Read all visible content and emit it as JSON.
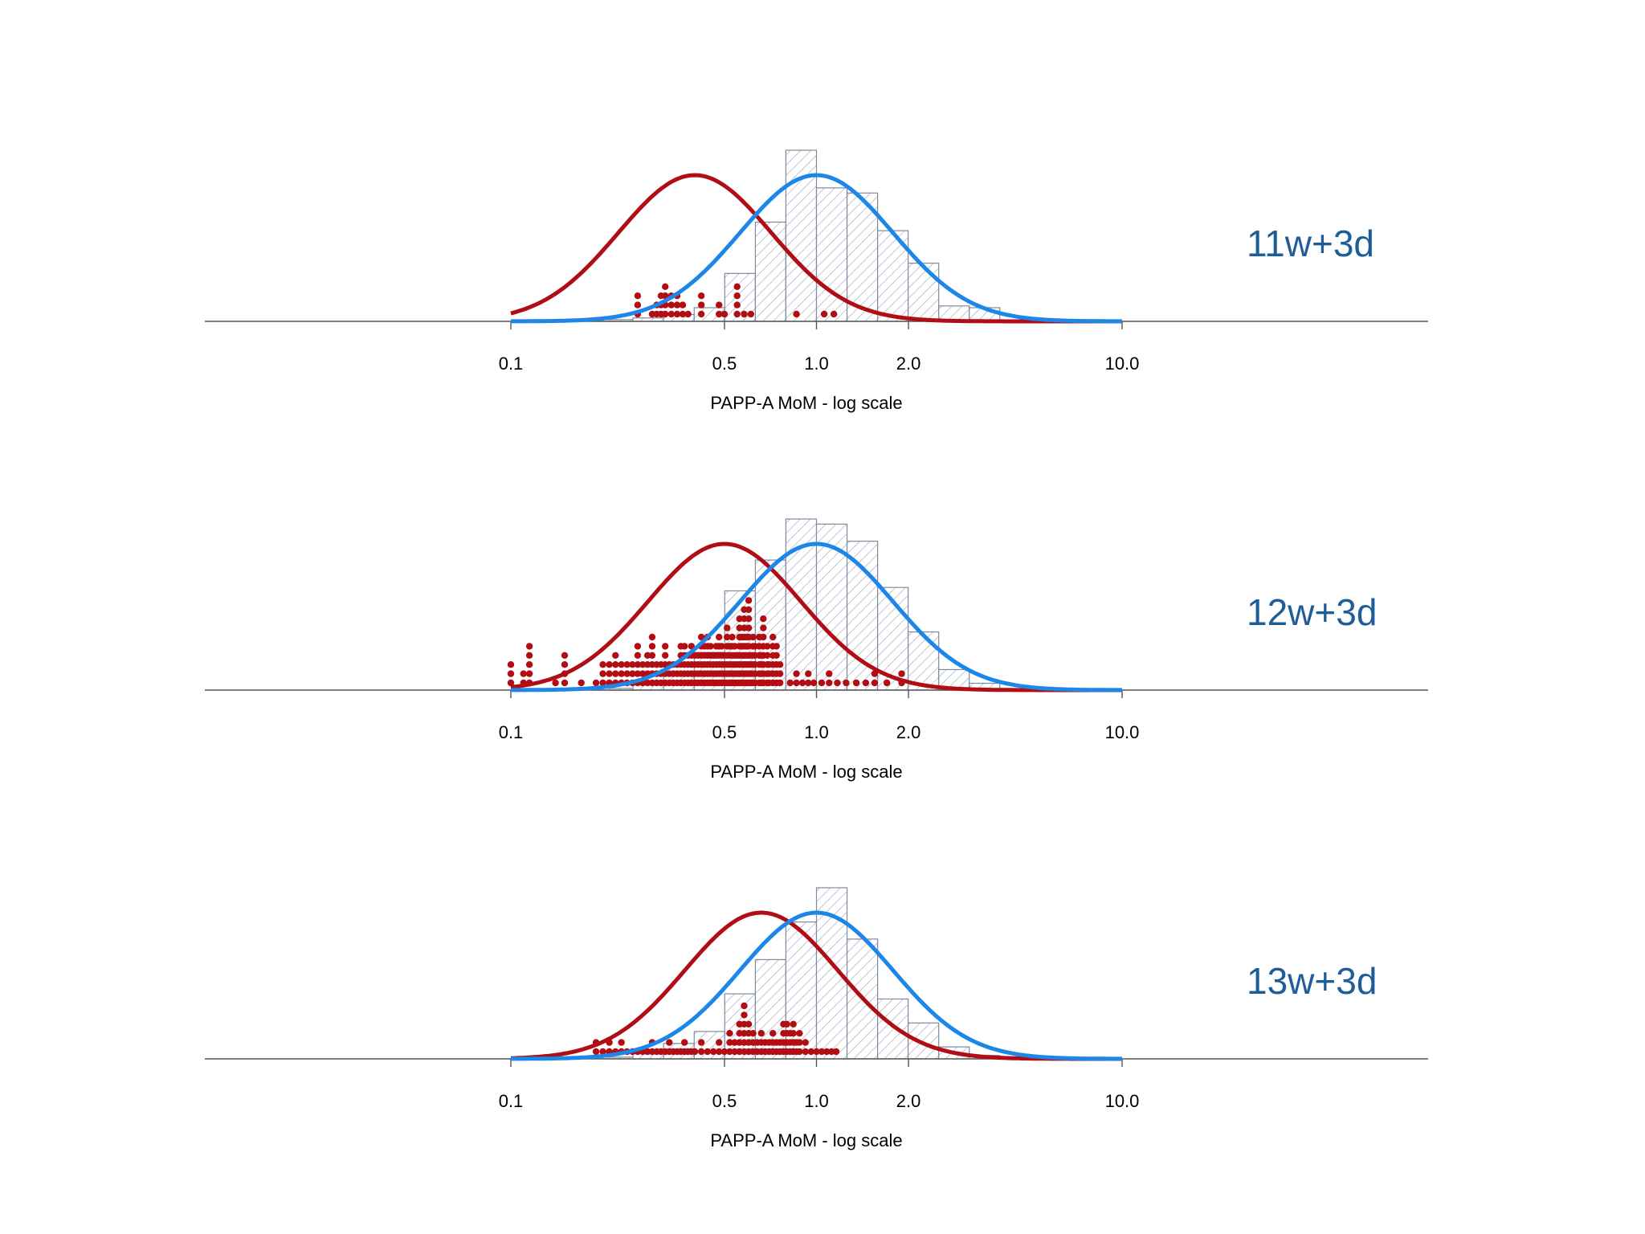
{
  "figure": {
    "colors": {
      "affected_curve": "#b00d15",
      "unaffected_curve": "#1c87e8",
      "points": "#b30d14",
      "histogram_edge": "#7f8aa0",
      "histogram_hatch": "#a6aebc",
      "baseline": "#555555",
      "panel_label": "#1f5d99"
    }
  },
  "chart_data": [
    {
      "type": "histogram-with-curves",
      "label": "11w+3d",
      "xlabel": "PAPP-A MoM - log scale",
      "x_scale": "log",
      "xlim": [
        0.1,
        10.0
      ],
      "x_ticks": [
        "0.1",
        "0.5",
        "1.0",
        "2.0",
        "10.0"
      ],
      "histogram": [
        {
          "x0": 0.1,
          "x1": 0.126,
          "freq": 0.0
        },
        {
          "x0": 0.126,
          "x1": 0.159,
          "freq": 0.0
        },
        {
          "x0": 0.159,
          "x1": 0.2,
          "freq": 0.01
        },
        {
          "x0": 0.2,
          "x1": 0.251,
          "freq": 0.01
        },
        {
          "x0": 0.251,
          "x1": 0.316,
          "freq": 0.02
        },
        {
          "x0": 0.316,
          "x1": 0.398,
          "freq": 0.04
        },
        {
          "x0": 0.398,
          "x1": 0.501,
          "freq": 0.08
        },
        {
          "x0": 0.501,
          "x1": 0.631,
          "freq": 0.28
        },
        {
          "x0": 0.631,
          "x1": 0.794,
          "freq": 0.58
        },
        {
          "x0": 0.794,
          "x1": 1.0,
          "freq": 1.0
        },
        {
          "x0": 1.0,
          "x1": 1.259,
          "freq": 0.78
        },
        {
          "x0": 1.259,
          "x1": 1.585,
          "freq": 0.75
        },
        {
          "x0": 1.585,
          "x1": 1.995,
          "freq": 0.53
        },
        {
          "x0": 1.995,
          "x1": 2.512,
          "freq": 0.34
        },
        {
          "x0": 2.512,
          "x1": 3.162,
          "freq": 0.09
        },
        {
          "x0": 3.162,
          "x1": 3.981,
          "freq": 0.08
        }
      ],
      "curves": [
        {
          "group": "affected",
          "median_mom": 0.4,
          "log10_sd": 0.25
        },
        {
          "group": "unaffected",
          "median_mom": 1.0,
          "log10_sd": 0.25
        }
      ],
      "points_max_count": 4,
      "points": [
        {
          "x": 0.26,
          "count": 3
        },
        {
          "x": 0.29,
          "count": 1
        },
        {
          "x": 0.3,
          "count": 2
        },
        {
          "x": 0.31,
          "count": 3
        },
        {
          "x": 0.32,
          "count": 4
        },
        {
          "x": 0.335,
          "count": 3
        },
        {
          "x": 0.35,
          "count": 3
        },
        {
          "x": 0.365,
          "count": 2
        },
        {
          "x": 0.38,
          "count": 1
        },
        {
          "x": 0.42,
          "count": 3
        },
        {
          "x": 0.48,
          "count": 2
        },
        {
          "x": 0.5,
          "count": 1
        },
        {
          "x": 0.55,
          "count": 4
        },
        {
          "x": 0.58,
          "count": 1
        },
        {
          "x": 0.61,
          "count": 1
        },
        {
          "x": 0.86,
          "count": 1
        },
        {
          "x": 1.06,
          "count": 1
        },
        {
          "x": 1.14,
          "count": 1
        }
      ]
    },
    {
      "type": "histogram-with-curves",
      "label": "12w+3d",
      "xlabel": "PAPP-A MoM - log scale",
      "x_scale": "log",
      "xlim": [
        0.1,
        10.0
      ],
      "x_ticks": [
        "0.1",
        "0.5",
        "1.0",
        "2.0",
        "10.0"
      ],
      "histogram": [
        {
          "x0": 0.1,
          "x1": 0.126,
          "freq": 0.0
        },
        {
          "x0": 0.126,
          "x1": 0.159,
          "freq": 0.0
        },
        {
          "x0": 0.159,
          "x1": 0.2,
          "freq": 0.0
        },
        {
          "x0": 0.2,
          "x1": 0.251,
          "freq": 0.01
        },
        {
          "x0": 0.251,
          "x1": 0.316,
          "freq": 0.03
        },
        {
          "x0": 0.316,
          "x1": 0.398,
          "freq": 0.1
        },
        {
          "x0": 0.398,
          "x1": 0.501,
          "freq": 0.22
        },
        {
          "x0": 0.501,
          "x1": 0.631,
          "freq": 0.58
        },
        {
          "x0": 0.631,
          "x1": 0.794,
          "freq": 0.76
        },
        {
          "x0": 0.794,
          "x1": 1.0,
          "freq": 1.0
        },
        {
          "x0": 1.0,
          "x1": 1.259,
          "freq": 0.97
        },
        {
          "x0": 1.259,
          "x1": 1.585,
          "freq": 0.87
        },
        {
          "x0": 1.585,
          "x1": 1.995,
          "freq": 0.6
        },
        {
          "x0": 1.995,
          "x1": 2.512,
          "freq": 0.34
        },
        {
          "x0": 2.512,
          "x1": 3.162,
          "freq": 0.12
        },
        {
          "x0": 3.162,
          "x1": 3.981,
          "freq": 0.04
        }
      ],
      "curves": [
        {
          "group": "affected",
          "median_mom": 0.5,
          "log10_sd": 0.25
        },
        {
          "group": "unaffected",
          "median_mom": 1.0,
          "log10_sd": 0.25
        }
      ],
      "points_max_count": 10,
      "points": [
        {
          "x": 0.1,
          "count": 3
        },
        {
          "x": 0.11,
          "count": 2
        },
        {
          "x": 0.115,
          "count": 5
        },
        {
          "x": 0.14,
          "count": 1
        },
        {
          "x": 0.15,
          "count": 4
        },
        {
          "x": 0.17,
          "count": 1
        },
        {
          "x": 0.19,
          "count": 1
        },
        {
          "x": 0.2,
          "count": 3
        },
        {
          "x": 0.21,
          "count": 3
        },
        {
          "x": 0.22,
          "count": 4
        },
        {
          "x": 0.23,
          "count": 3
        },
        {
          "x": 0.24,
          "count": 3
        },
        {
          "x": 0.25,
          "count": 3
        },
        {
          "x": 0.26,
          "count": 5
        },
        {
          "x": 0.27,
          "count": 3
        },
        {
          "x": 0.28,
          "count": 4
        },
        {
          "x": 0.29,
          "count": 6
        },
        {
          "x": 0.3,
          "count": 3
        },
        {
          "x": 0.31,
          "count": 3
        },
        {
          "x": 0.32,
          "count": 5
        },
        {
          "x": 0.33,
          "count": 3
        },
        {
          "x": 0.34,
          "count": 3
        },
        {
          "x": 0.35,
          "count": 3
        },
        {
          "x": 0.36,
          "count": 5
        },
        {
          "x": 0.37,
          "count": 5
        },
        {
          "x": 0.38,
          "count": 4
        },
        {
          "x": 0.39,
          "count": 5
        },
        {
          "x": 0.4,
          "count": 4
        },
        {
          "x": 0.41,
          "count": 4
        },
        {
          "x": 0.42,
          "count": 6
        },
        {
          "x": 0.43,
          "count": 5
        },
        {
          "x": 0.44,
          "count": 6
        },
        {
          "x": 0.45,
          "count": 5
        },
        {
          "x": 0.46,
          "count": 4
        },
        {
          "x": 0.47,
          "count": 5
        },
        {
          "x": 0.48,
          "count": 6
        },
        {
          "x": 0.49,
          "count": 5
        },
        {
          "x": 0.5,
          "count": 4
        },
        {
          "x": 0.51,
          "count": 7
        },
        {
          "x": 0.52,
          "count": 5
        },
        {
          "x": 0.53,
          "count": 6
        },
        {
          "x": 0.54,
          "count": 5
        },
        {
          "x": 0.55,
          "count": 4
        },
        {
          "x": 0.56,
          "count": 8
        },
        {
          "x": 0.57,
          "count": 6
        },
        {
          "x": 0.58,
          "count": 9
        },
        {
          "x": 0.59,
          "count": 6
        },
        {
          "x": 0.6,
          "count": 10
        },
        {
          "x": 0.61,
          "count": 4
        },
        {
          "x": 0.62,
          "count": 6
        },
        {
          "x": 0.63,
          "count": 5
        },
        {
          "x": 0.65,
          "count": 6
        },
        {
          "x": 0.66,
          "count": 4
        },
        {
          "x": 0.67,
          "count": 8
        },
        {
          "x": 0.69,
          "count": 5
        },
        {
          "x": 0.7,
          "count": 3
        },
        {
          "x": 0.72,
          "count": 6
        },
        {
          "x": 0.74,
          "count": 5
        },
        {
          "x": 0.76,
          "count": 3
        },
        {
          "x": 0.82,
          "count": 1
        },
        {
          "x": 0.86,
          "count": 2
        },
        {
          "x": 0.9,
          "count": 1
        },
        {
          "x": 0.94,
          "count": 2
        },
        {
          "x": 0.98,
          "count": 1
        },
        {
          "x": 1.04,
          "count": 1
        },
        {
          "x": 1.1,
          "count": 2
        },
        {
          "x": 1.17,
          "count": 1
        },
        {
          "x": 1.25,
          "count": 1
        },
        {
          "x": 1.35,
          "count": 1
        },
        {
          "x": 1.45,
          "count": 1
        },
        {
          "x": 1.55,
          "count": 2
        },
        {
          "x": 1.7,
          "count": 1
        },
        {
          "x": 1.9,
          "count": 2
        }
      ]
    },
    {
      "type": "histogram-with-curves",
      "label": "13w+3d",
      "xlabel": "PAPP-A MoM - log scale",
      "x_scale": "log",
      "xlim": [
        0.1,
        10.0
      ],
      "x_ticks": [
        "0.1",
        "0.5",
        "1.0",
        "2.0",
        "10.0"
      ],
      "histogram": [
        {
          "x0": 0.1,
          "x1": 0.126,
          "freq": 0.0
        },
        {
          "x0": 0.126,
          "x1": 0.159,
          "freq": 0.0
        },
        {
          "x0": 0.159,
          "x1": 0.2,
          "freq": 0.0
        },
        {
          "x0": 0.2,
          "x1": 0.251,
          "freq": 0.01
        },
        {
          "x0": 0.251,
          "x1": 0.316,
          "freq": 0.03
        },
        {
          "x0": 0.316,
          "x1": 0.398,
          "freq": 0.09
        },
        {
          "x0": 0.398,
          "x1": 0.501,
          "freq": 0.16
        },
        {
          "x0": 0.501,
          "x1": 0.631,
          "freq": 0.38
        },
        {
          "x0": 0.631,
          "x1": 0.794,
          "freq": 0.58
        },
        {
          "x0": 0.794,
          "x1": 1.0,
          "freq": 0.8
        },
        {
          "x0": 1.0,
          "x1": 1.259,
          "freq": 1.0
        },
        {
          "x0": 1.259,
          "x1": 1.585,
          "freq": 0.7
        },
        {
          "x0": 1.585,
          "x1": 1.995,
          "freq": 0.35
        },
        {
          "x0": 1.995,
          "x1": 2.512,
          "freq": 0.21
        },
        {
          "x0": 2.512,
          "x1": 3.162,
          "freq": 0.07
        },
        {
          "x0": 3.162,
          "x1": 3.981,
          "freq": 0.02
        }
      ],
      "curves": [
        {
          "group": "affected",
          "median_mom": 0.66,
          "log10_sd": 0.25
        },
        {
          "group": "unaffected",
          "median_mom": 1.0,
          "log10_sd": 0.25
        }
      ],
      "points_max_count": 6,
      "points": [
        {
          "x": 0.19,
          "count": 2
        },
        {
          "x": 0.2,
          "count": 1
        },
        {
          "x": 0.21,
          "count": 2
        },
        {
          "x": 0.22,
          "count": 1
        },
        {
          "x": 0.23,
          "count": 2
        },
        {
          "x": 0.24,
          "count": 1
        },
        {
          "x": 0.25,
          "count": 1
        },
        {
          "x": 0.26,
          "count": 1
        },
        {
          "x": 0.27,
          "count": 1
        },
        {
          "x": 0.28,
          "count": 1
        },
        {
          "x": 0.29,
          "count": 2
        },
        {
          "x": 0.3,
          "count": 1
        },
        {
          "x": 0.31,
          "count": 1
        },
        {
          "x": 0.32,
          "count": 1
        },
        {
          "x": 0.33,
          "count": 2
        },
        {
          "x": 0.34,
          "count": 1
        },
        {
          "x": 0.35,
          "count": 1
        },
        {
          "x": 0.36,
          "count": 1
        },
        {
          "x": 0.37,
          "count": 2
        },
        {
          "x": 0.38,
          "count": 1
        },
        {
          "x": 0.39,
          "count": 1
        },
        {
          "x": 0.4,
          "count": 1
        },
        {
          "x": 0.42,
          "count": 2
        },
        {
          "x": 0.44,
          "count": 1
        },
        {
          "x": 0.46,
          "count": 1
        },
        {
          "x": 0.48,
          "count": 2
        },
        {
          "x": 0.5,
          "count": 1
        },
        {
          "x": 0.52,
          "count": 3
        },
        {
          "x": 0.54,
          "count": 2
        },
        {
          "x": 0.56,
          "count": 4
        },
        {
          "x": 0.58,
          "count": 6
        },
        {
          "x": 0.6,
          "count": 4
        },
        {
          "x": 0.62,
          "count": 3
        },
        {
          "x": 0.64,
          "count": 2
        },
        {
          "x": 0.66,
          "count": 3
        },
        {
          "x": 0.68,
          "count": 2
        },
        {
          "x": 0.7,
          "count": 2
        },
        {
          "x": 0.72,
          "count": 3
        },
        {
          "x": 0.74,
          "count": 2
        },
        {
          "x": 0.76,
          "count": 2
        },
        {
          "x": 0.78,
          "count": 4
        },
        {
          "x": 0.8,
          "count": 4
        },
        {
          "x": 0.82,
          "count": 3
        },
        {
          "x": 0.84,
          "count": 4
        },
        {
          "x": 0.86,
          "count": 2
        },
        {
          "x": 0.88,
          "count": 3
        },
        {
          "x": 0.92,
          "count": 2
        },
        {
          "x": 0.96,
          "count": 1
        },
        {
          "x": 1.0,
          "count": 1
        },
        {
          "x": 1.04,
          "count": 1
        },
        {
          "x": 1.08,
          "count": 1
        },
        {
          "x": 1.12,
          "count": 1
        },
        {
          "x": 1.16,
          "count": 1
        }
      ]
    }
  ]
}
